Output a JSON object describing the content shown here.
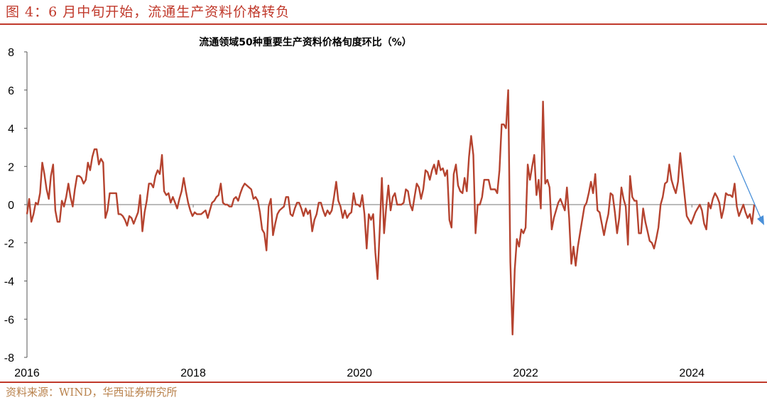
{
  "figure_title": "图 4：6 月中旬开始，流通生产资料价格转负",
  "source_text": "资料来源：WIND，华西证券研究所",
  "colors": {
    "accent": "#c0392b",
    "line": "#b5432f",
    "arrow": "#4a90d9",
    "source": "#b9824c"
  },
  "chart_data": {
    "type": "line",
    "title": "流通领域50种重要生产资料价格旬度环比（%）",
    "ylim": [
      -8,
      8
    ],
    "yticks": [
      8,
      6,
      4,
      2,
      0,
      -2,
      -4,
      -6,
      -8
    ],
    "xlim": [
      2016,
      2024.75
    ],
    "xticks": [
      "2016",
      "2018",
      "2020",
      "2022",
      "2024"
    ],
    "annotation": "downward arrow at end of series",
    "series": [
      {
        "step": "10 days",
        "values": [
          -0.5,
          0.3,
          -0.9,
          -0.5,
          0.1,
          0.0,
          0.6,
          2.2,
          1.6,
          0.8,
          0.3,
          1.5,
          2.1,
          -0.3,
          -0.9,
          -0.9,
          0.2,
          -0.1,
          0.4,
          1.1,
          0.4,
          -0.1,
          0.8,
          1.5,
          1.5,
          1.4,
          1.1,
          1.3,
          2.2,
          1.8,
          2.5,
          2.9,
          2.9,
          2.1,
          2.4,
          2.2,
          -0.7,
          -0.3,
          0.6,
          0.6,
          0.6,
          0.6,
          -0.5,
          -0.5,
          -0.6,
          -0.8,
          -1.1,
          -0.6,
          -0.7,
          -1.0,
          -0.7,
          -0.4,
          0.5,
          -1.4,
          -0.4,
          0.2,
          1.1,
          1.1,
          0.9,
          1.5,
          1.8,
          1.6,
          2.6,
          0.7,
          0.5,
          0.6,
          0.1,
          0.4,
          0.1,
          -0.2,
          0.3,
          0.7,
          1.4,
          0.7,
          0.1,
          -0.3,
          -0.6,
          -0.4,
          -0.5,
          -0.5,
          -0.5,
          -0.4,
          -0.3,
          -0.7,
          -0.3,
          0.1,
          0.2,
          0.4,
          0.5,
          1.1,
          0.1,
          0.0,
          0.0,
          -0.1,
          -0.1,
          0.3,
          0.4,
          0.2,
          0.6,
          0.9,
          1.1,
          1.0,
          0.9,
          0.8,
          0.3,
          0.4,
          0.2,
          -0.4,
          -1.3,
          -1.5,
          -2.4,
          -0.1,
          0.3,
          -1.6,
          -1.0,
          -0.5,
          -0.3,
          -0.2,
          -0.1,
          0.4,
          0.4,
          -0.5,
          -0.6,
          -0.2,
          0.1,
          0.1,
          -0.2,
          -0.6,
          -0.2,
          -0.5,
          -0.3,
          -1.4,
          -0.8,
          -0.5,
          0.1,
          0.1,
          -0.3,
          -0.6,
          -0.3,
          -0.5,
          -0.3,
          0.4,
          1.2,
          0.2,
          -0.1,
          -0.7,
          -0.3,
          -0.7,
          -0.5,
          -0.4,
          0.6,
          0.0,
          0.0,
          -0.1,
          0.5,
          -0.5,
          -2.3,
          -0.5,
          -0.8,
          -0.5,
          -2.5,
          -3.9,
          -1.3,
          1.4,
          -1.5,
          -0.1,
          1.0,
          -0.3,
          0.4,
          0.6,
          0.0,
          0.0,
          0.0,
          0.1,
          0.8,
          0.7,
          0.0,
          -0.3,
          0.4,
          1.1,
          0.9,
          0.3,
          0.8,
          1.8,
          1.7,
          1.3,
          1.8,
          2.1,
          1.6,
          2.3,
          1.8,
          1.9,
          1.5,
          1.8,
          -0.8,
          -1.2,
          1.6,
          2.1,
          1.0,
          0.7,
          0.6,
          1.4,
          0.7,
          2.5,
          3.6,
          2.6,
          -1.5,
          0.0,
          0.0,
          0.4,
          1.3,
          1.3,
          1.3,
          0.8,
          0.8,
          0.8,
          0.6,
          1.8,
          4.2,
          4.2,
          4.0,
          6.0,
          -3.0,
          -6.8,
          -3.4,
          -1.8,
          -2.2,
          -1.3,
          -1.5,
          -1.2,
          2.1,
          1.3,
          2.0,
          2.6,
          0.5,
          1.3,
          -0.2,
          5.4,
          1.1,
          1.3,
          0.9,
          -1.3,
          -0.7,
          -0.3,
          0.1,
          0.3,
          0.0,
          -0.3,
          0.9,
          -0.7,
          -3.1,
          -2.2,
          -3.2,
          -2.2,
          -1.5,
          -0.8,
          -0.1,
          0.1,
          0.6,
          1.2,
          0.6,
          1.6,
          -0.3,
          -0.4,
          -1.0,
          -1.6,
          -1.0,
          -0.5,
          0.6,
          0.5,
          -0.4,
          -1.5,
          -0.7,
          0.9,
          0.3,
          -0.1,
          -2.1,
          1.5,
          0.4,
          0.2,
          0.2,
          -1.5,
          -1.5,
          -0.2,
          -0.9,
          -1.4,
          -1.9,
          -2.0,
          -2.3,
          -1.8,
          -1.2,
          0.0,
          0.4,
          1.1,
          1.2,
          2.1,
          1.3,
          0.9,
          0.6,
          1.2,
          2.7,
          1.6,
          0.5,
          -0.6,
          -0.8,
          -1.0,
          -0.7,
          -0.4,
          -0.2,
          0.0,
          -0.3,
          -1.0,
          -1.3,
          0.1,
          -0.2,
          0.3,
          0.6,
          0.4,
          0.1,
          -0.7,
          -0.2,
          0.6,
          0.5,
          0.5,
          0.4,
          1.1,
          -0.1,
          -0.6,
          -0.3,
          0.0,
          -0.4,
          -0.7,
          -0.5,
          -1.0,
          0.0
        ]
      }
    ]
  }
}
